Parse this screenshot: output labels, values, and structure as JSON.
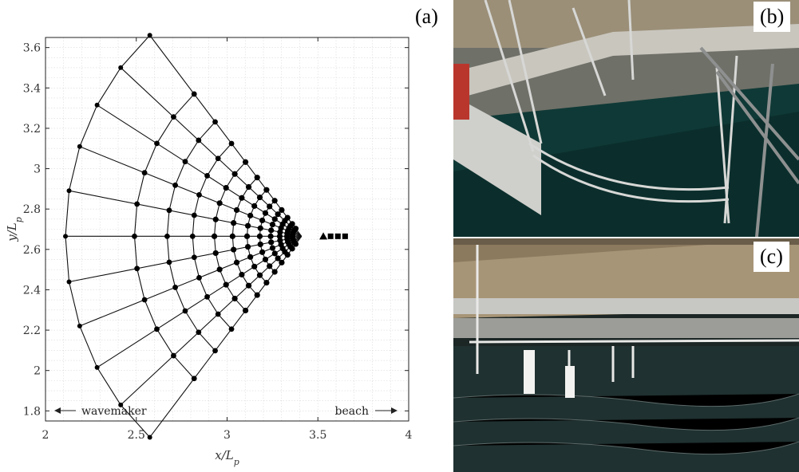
{
  "figure": {
    "panel_labels": [
      "(a)",
      "(b)",
      "(c)"
    ]
  },
  "chart_data": {
    "type": "scatter",
    "xlabel": "x/L",
    "xlabel_sub": "p",
    "ylabel": "y/L",
    "ylabel_sub": "p",
    "xlim": [
      2,
      4
    ],
    "ylim": [
      1.75,
      3.65
    ],
    "xticks": [
      "2",
      "2.5",
      "3",
      "3.5",
      "4"
    ],
    "xtick_values": [
      2,
      2.5,
      3,
      3.5,
      4
    ],
    "yticks": [
      "1.8",
      "2",
      "2.2",
      "2.4",
      "2.6",
      "2.8",
      "3",
      "3.2",
      "3.4",
      "3.6"
    ],
    "ytick_values": [
      1.8,
      2.0,
      2.2,
      2.4,
      2.6,
      2.8,
      3.0,
      3.2,
      3.4,
      3.6
    ],
    "grid": true,
    "array": {
      "apex": [
        3.41,
        2.665
      ],
      "radii": [
        1.3,
        0.92,
        0.74,
        0.6,
        0.48,
        0.38,
        0.3,
        0.23,
        0.17,
        0.12,
        0.08,
        0.05
      ],
      "angles_deg": [
        -50,
        -40,
        -30,
        -20,
        -10,
        0,
        10,
        20,
        30,
        40,
        50
      ]
    },
    "triangle_marker": [
      3.53,
      2.665
    ],
    "square_markers": [
      [
        3.57,
        2.665
      ],
      [
        3.61,
        2.665
      ],
      [
        3.65,
        2.665
      ]
    ],
    "annotations": {
      "left_text": "wavemaker",
      "right_text": "beach"
    }
  }
}
